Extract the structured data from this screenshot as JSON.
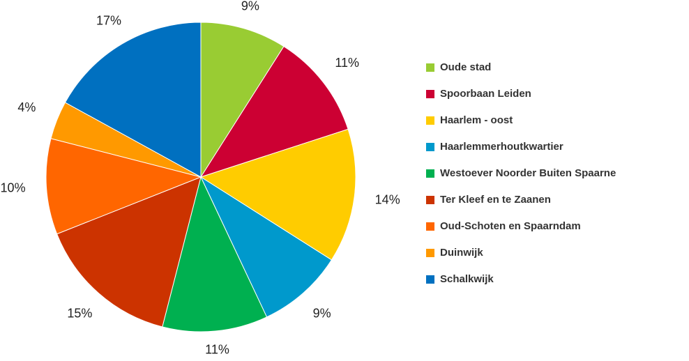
{
  "chart_data": {
    "type": "pie",
    "categories": [
      "Oude stad",
      "Spoorbaan Leiden",
      "Haarlem - oost",
      "Haarlemmerhoutkwartier",
      "Westoever Noorder Buiten Spaarne",
      "Ter Kleef en te Zaanen",
      "Oud-Schoten en Spaarndam",
      "Duinwijk",
      "Schalkwijk"
    ],
    "values": [
      9,
      11,
      14,
      9,
      11,
      15,
      10,
      4,
      17
    ],
    "value_labels": [
      "9%",
      "11%",
      "14%",
      "9%",
      "11%",
      "15%",
      "10%",
      "4%",
      "17%"
    ],
    "colors": [
      "#99cc33",
      "#cc0033",
      "#ffcc00",
      "#0099cc",
      "#00b050",
      "#cc3300",
      "#ff6600",
      "#ff9900",
      "#0070c0"
    ],
    "legend": "right"
  }
}
